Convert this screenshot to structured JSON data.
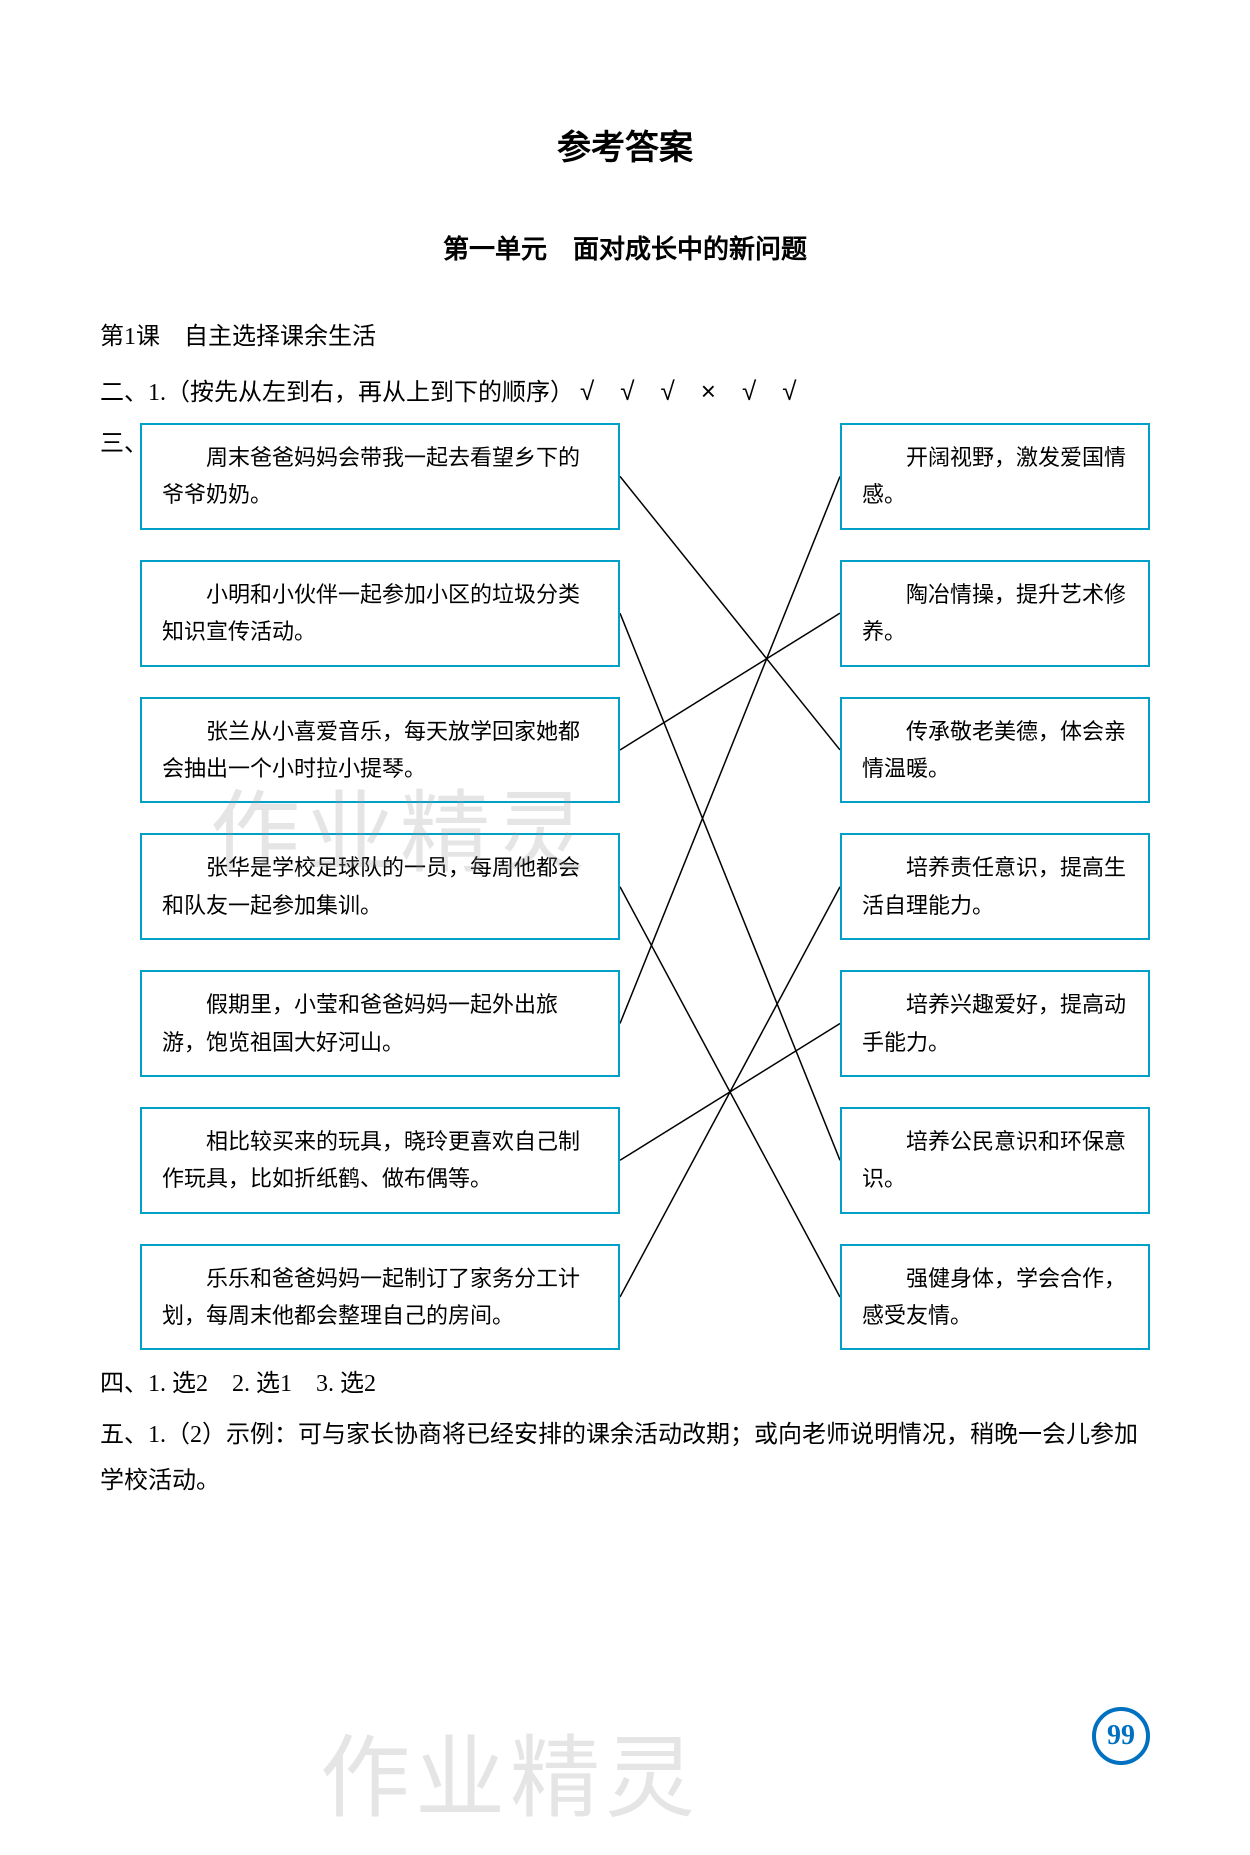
{
  "page": {
    "title": "参考答案",
    "unit_title": "第一单元　面对成长中的新问题",
    "lesson_title": "第1课　自主选择课余生活",
    "page_number": "99"
  },
  "section_two": {
    "prefix": "二、1.（按先从左到右，再从上到下的顺序）",
    "marks": [
      "√",
      "√",
      "√",
      "×",
      "√",
      "√"
    ]
  },
  "section_three": {
    "label": "三、",
    "left_boxes": [
      "周末爸爸妈妈会带我一起去看望乡下的爷爷奶奶。",
      "小明和小伙伴一起参加小区的垃圾分类知识宣传活动。",
      "张兰从小喜爱音乐，每天放学回家她都会抽出一个小时拉小提琴。",
      "张华是学校足球队的一员，每周他都会和队友一起参加集训。",
      "假期里，小莹和爸爸妈妈一起外出旅游，饱览祖国大好河山。",
      "相比较买来的玩具，晓玲更喜欢自己制作玩具，比如折纸鹤、做布偶等。",
      "乐乐和爸爸妈妈一起制订了家务分工计划，每周末他都会整理自己的房间。"
    ],
    "right_boxes": [
      "开阔视野，激发爱国情感。",
      "陶冶情操，提升艺术修养。",
      "传承敬老美德，体会亲情温暖。",
      "培养责任意识，提高生活自理能力。",
      "培养兴趣爱好，提高动手能力。",
      "培养公民意识和环保意识。",
      "强健身体，学会合作，感受友情。"
    ],
    "connections": [
      {
        "from": 0,
        "to": 2
      },
      {
        "from": 1,
        "to": 5
      },
      {
        "from": 2,
        "to": 1
      },
      {
        "from": 3,
        "to": 6
      },
      {
        "from": 4,
        "to": 0
      },
      {
        "from": 5,
        "to": 4
      },
      {
        "from": 6,
        "to": 3
      }
    ],
    "line_color": "#000000",
    "box_border_color": "#00a0c8"
  },
  "section_four": {
    "text": "四、1. 选2　2. 选1　3. 选2"
  },
  "section_five": {
    "text": "五、1.（2）示例：可与家长协商将已经安排的课余活动改期；或向老师说明情况，稍晚一会儿参加学校活动。"
  },
  "watermark_text": "作业精灵"
}
